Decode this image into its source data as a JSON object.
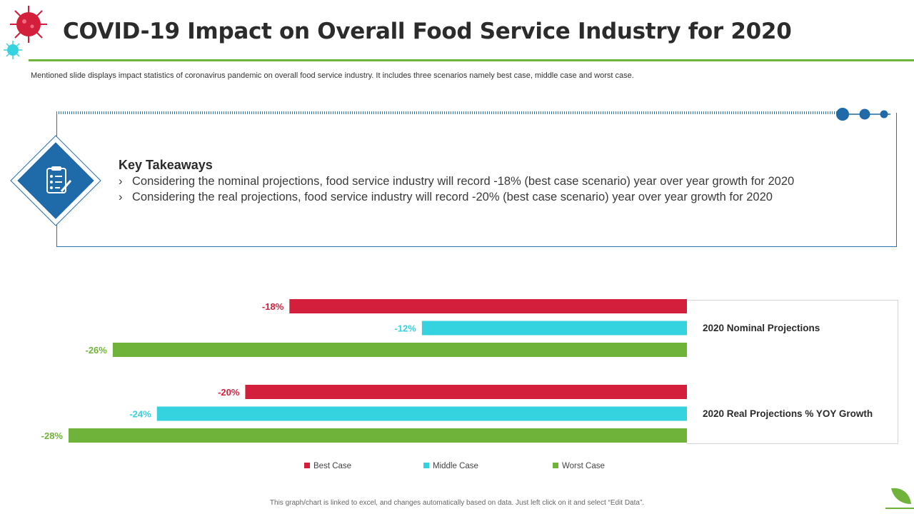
{
  "header": {
    "title": "COVID-19 Impact on Overall Food Service Industry for 2020",
    "subtitle": "Mentioned slide displays impact statistics of coronavirus pandemic on overall food service industry. It includes three scenarios namely best case, middle case and worst case."
  },
  "takeaways": {
    "title": "Key Takeaways",
    "items": [
      "Considering the nominal projections, food service industry will record -18% (best case scenario) year over year growth for 2020",
      "Considering the real projections, food service industry will record -20% (best case scenario) year over year growth for 2020"
    ],
    "bullet": "›"
  },
  "footnote": "This graph/chart is linked to excel, and changes automatically based on data. Just left click on it and select “Edit Data”.",
  "colors": {
    "best": "#d41f3c",
    "middle": "#35d2e0",
    "worst": "#6fb33a",
    "accent_blue": "#1f6aa8"
  },
  "chart_data": {
    "type": "bar",
    "orientation": "horizontal",
    "categories": [
      "2020 Nominal Projections",
      "2020 Real Projections % YOY Growth"
    ],
    "series": [
      {
        "name": "Best Case",
        "values": [
          -18,
          -20
        ],
        "labels": [
          "-18%",
          "-20%"
        ]
      },
      {
        "name": "Middle Case",
        "values": [
          -12,
          -24
        ],
        "labels": [
          "-12%",
          "-24%"
        ]
      },
      {
        "name": "Worst Case",
        "values": [
          -26,
          -28
        ],
        "labels": [
          "-26%",
          "-28%"
        ]
      }
    ],
    "xlim": [
      -28,
      0
    ],
    "legend_position": "bottom",
    "grid": false
  }
}
